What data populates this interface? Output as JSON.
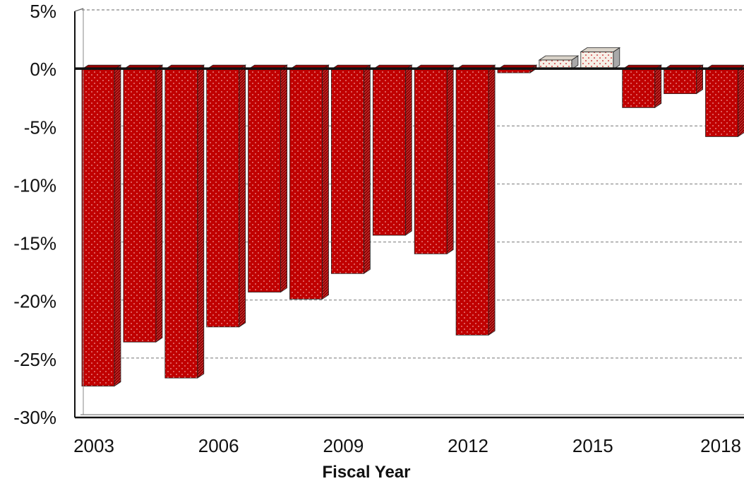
{
  "chart_data": {
    "type": "bar",
    "xlabel": "Fiscal Year",
    "ylabel": "",
    "title": "",
    "categories": [
      "2003",
      "2004",
      "2005",
      "2006",
      "2007",
      "2008",
      "2009",
      "2010",
      "2011",
      "2012",
      "2013",
      "2014",
      "2015",
      "2016",
      "2017",
      "2018"
    ],
    "values": [
      -27.3,
      -23.5,
      -26.6,
      -22.2,
      -19.2,
      -19.8,
      -17.6,
      -14.3,
      -15.9,
      -22.9,
      -0.3,
      0.8,
      1.5,
      -3.3,
      -2.1,
      -5.8
    ],
    "x_tick_labels": [
      "2003",
      "2006",
      "2009",
      "2012",
      "2015",
      "2018"
    ],
    "y_tick_labels": [
      "5%",
      "0%",
      "-5%",
      "-10%",
      "-15%",
      "-20%",
      "-25%",
      "-30%"
    ],
    "ylim": [
      -30,
      5
    ],
    "grid": "horizontal dashed",
    "colors": {
      "negative_fill": "#c00000",
      "negative_side": "#7a0000",
      "positive_fill": "#f6efe6",
      "positive_side": "#a9a9a9",
      "grid": "#9a9a9a",
      "axis": "#111111"
    }
  }
}
